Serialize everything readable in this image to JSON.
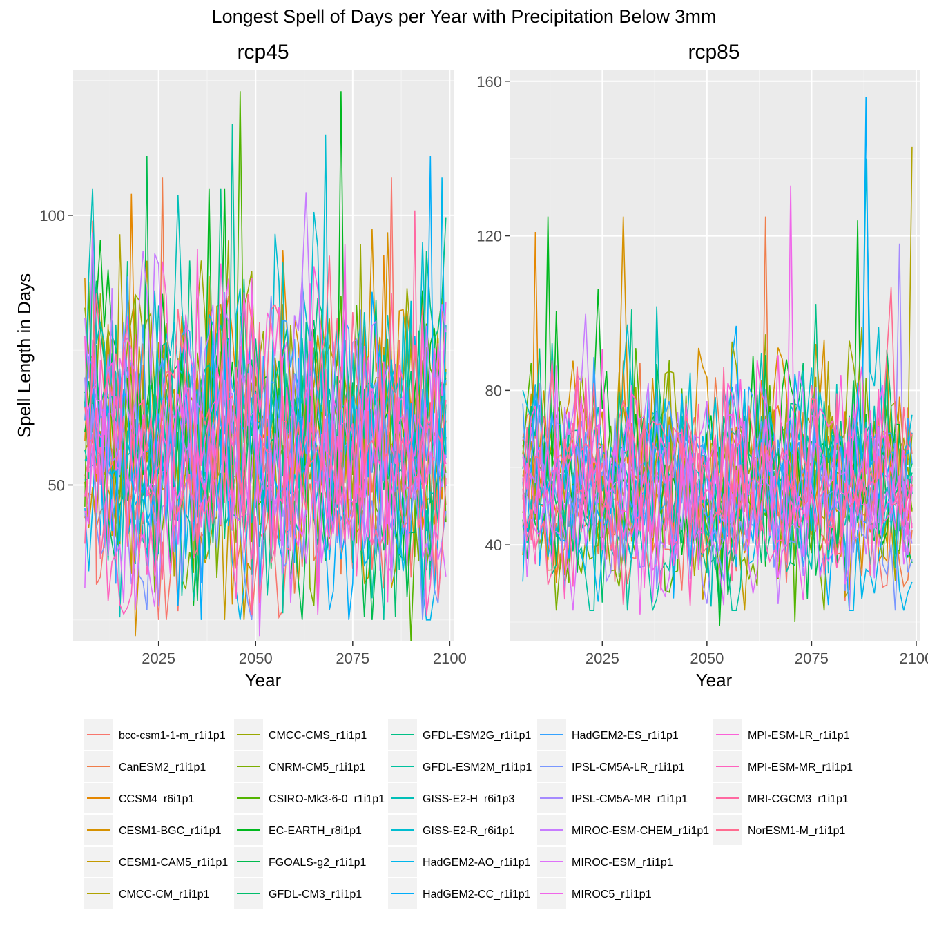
{
  "chart_data": {
    "type": "line",
    "title": "Longest Spell of Days per Year with Precipitation Below 3mm",
    "xlabel": "Year",
    "ylabel": "Spell Length in Days",
    "grid": true,
    "legend_position": "bottom",
    "panels": [
      {
        "name": "rcp45",
        "xlim": [
          2006,
          2099
        ],
        "ylim": [
          21,
          127
        ],
        "x_ticks": [
          2025,
          2050,
          2075,
          2100
        ],
        "y_ticks": [
          50,
          100
        ],
        "y_minor": [
          25,
          75,
          125
        ],
        "mean_range": [
          46,
          66
        ],
        "min_value": 21,
        "max_value": 123,
        "peaks": [
          {
            "x": 2046,
            "y": 123,
            "series": "CSIRO-Mk3-6-0_r1i1p1"
          },
          {
            "x": 2072,
            "y": 123,
            "series": "EC-EARTH_r8i1p1"
          },
          {
            "x": 2044,
            "y": 117,
            "series": "GFDL-ESM2M_r1i1p1"
          },
          {
            "x": 2068,
            "y": 115,
            "series": "GISS-E2-R_r6i1p1"
          },
          {
            "x": 2022,
            "y": 111,
            "series": "FGOALS-g2_r1i1p1"
          },
          {
            "x": 2095,
            "y": 111,
            "series": "HadGEM2-CC_r1i1p1"
          },
          {
            "x": 2026,
            "y": 107,
            "series": "CanESM2_r1i1p1"
          },
          {
            "x": 2085,
            "y": 107,
            "series": "bcc-csm1-1-m_r1i1p1"
          },
          {
            "x": 2098,
            "y": 107,
            "series": "HadGEM2-AO_r1i1p1"
          },
          {
            "x": 2018,
            "y": 104,
            "series": "CCSM4_r6i1p1"
          },
          {
            "x": 2008,
            "y": 99,
            "series": "bcc-csm1-1-m_r1i1p1"
          }
        ],
        "troughs": [
          {
            "x": 2019,
            "y": 22,
            "series": "CESM1-BGC_r1i1p1"
          },
          {
            "x": 2090,
            "y": 21,
            "series": "CSIRO-Mk3-6-0_r1i1p1"
          },
          {
            "x": 2051,
            "y": 22,
            "series": "MIROC-ESM_r1i1p1"
          }
        ]
      },
      {
        "name": "rcp85",
        "xlim": [
          2006,
          2099
        ],
        "ylim": [
          15,
          163
        ],
        "x_ticks": [
          2025,
          2050,
          2075,
          2100
        ],
        "y_ticks": [
          40,
          80,
          120,
          160
        ],
        "y_minor": [
          20,
          60,
          100,
          140
        ],
        "mean_range": [
          46,
          62
        ],
        "min_value": 19,
        "max_value": 156,
        "peaks": [
          {
            "x": 2088,
            "y": 156,
            "series": "HadGEM2-CC_r1i1p1"
          },
          {
            "x": 2099,
            "y": 143,
            "series": "CMCC-CM_r1i1p1"
          },
          {
            "x": 2088,
            "y": 140,
            "series": "GISS-E2-R_r6i1p1"
          },
          {
            "x": 2070,
            "y": 133,
            "series": "MIROC5_r1i1p1"
          },
          {
            "x": 2012,
            "y": 125,
            "series": "EC-EARTH_r8i1p1"
          },
          {
            "x": 2030,
            "y": 125,
            "series": "CESM1-BGC_r1i1p1"
          },
          {
            "x": 2064,
            "y": 125,
            "series": "CanESM2_r1i1p1"
          },
          {
            "x": 2086,
            "y": 124,
            "series": "EC-EARTH_r8i1p1"
          },
          {
            "x": 2009,
            "y": 121,
            "series": "CCSM4_r6i1p1"
          },
          {
            "x": 2096,
            "y": 118,
            "series": "IPSL-CM5A-MR_r1i1p1"
          }
        ],
        "troughs": [
          {
            "x": 2053,
            "y": 19,
            "series": "EC-EARTH_r8i1p1"
          },
          {
            "x": 2071,
            "y": 20,
            "series": "CSIRO-Mk3-6-0_r1i1p1"
          },
          {
            "x": 2034,
            "y": 22,
            "series": "MIROC5_r1i1p1"
          }
        ]
      }
    ],
    "series": [
      {
        "name": "bcc-csm1-1-m_r1i1p1",
        "color": "#F8766D"
      },
      {
        "name": "CanESM2_r1i1p1",
        "color": "#F07D4A"
      },
      {
        "name": "CCSM4_r6i1p1",
        "color": "#E58700"
      },
      {
        "name": "CESM1-BGC_r1i1p1",
        "color": "#D69100"
      },
      {
        "name": "CESM1-CAM5_r1i1p1",
        "color": "#C49A00"
      },
      {
        "name": "CMCC-CM_r1i1p1",
        "color": "#B0A300"
      },
      {
        "name": "CMCC-CMS_r1i1p1",
        "color": "#99A800"
      },
      {
        "name": "CNRM-CM5_r1i1p1",
        "color": "#7CAE00"
      },
      {
        "name": "CSIRO-Mk3-6-0_r1i1p1",
        "color": "#53B400"
      },
      {
        "name": "EC-EARTH_r8i1p1",
        "color": "#00B81F"
      },
      {
        "name": "FGOALS-g2_r1i1p1",
        "color": "#00BB4E"
      },
      {
        "name": "GFDL-CM3_r1i1p1",
        "color": "#00BE6C"
      },
      {
        "name": "GFDL-ESM2G_r1i1p1",
        "color": "#00C086"
      },
      {
        "name": "GFDL-ESM2M_r1i1p1",
        "color": "#00C19F"
      },
      {
        "name": "GISS-E2-H_r6i1p3",
        "color": "#00BFB7"
      },
      {
        "name": "GISS-E2-R_r6i1p1",
        "color": "#00BDD0"
      },
      {
        "name": "HadGEM2-AO_r1i1p1",
        "color": "#00B6EB"
      },
      {
        "name": "HadGEM2-CC_r1i1p1",
        "color": "#00ADFA"
      },
      {
        "name": "HadGEM2-ES_r1i1p1",
        "color": "#35A2FF"
      },
      {
        "name": "IPSL-CM5A-LR_r1i1p1",
        "color": "#7997FF"
      },
      {
        "name": "IPSL-CM5A-MR_r1i1p1",
        "color": "#A58AFF"
      },
      {
        "name": "MIROC-ESM-CHEM_r1i1p1",
        "color": "#C77CFF"
      },
      {
        "name": "MIROC-ESM_r1i1p1",
        "color": "#DE71F9"
      },
      {
        "name": "MIROC5_r1i1p1",
        "color": "#F066EA"
      },
      {
        "name": "MPI-ESM-LR_r1i1p1",
        "color": "#FB61D7"
      },
      {
        "name": "MPI-ESM-MR_r1i1p1",
        "color": "#FF62BE"
      },
      {
        "name": "MRI-CGCM3_r1i1p1",
        "color": "#FF68A1"
      },
      {
        "name": "NorESM1-M_r1i1p1",
        "color": "#FF6C90"
      }
    ]
  }
}
